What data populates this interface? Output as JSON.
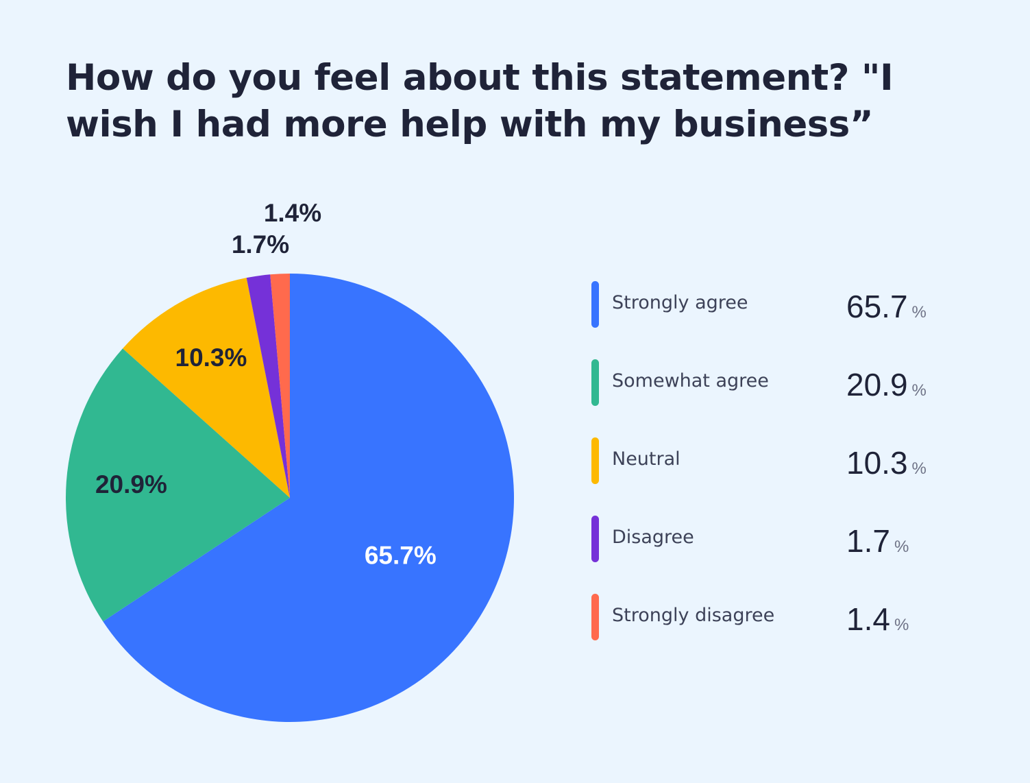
{
  "chart_data": {
    "type": "pie",
    "title": "How do you feel about this statement? \"I wish I had more help with my business”",
    "categories": [
      "Strongly agree",
      "Somewhat agree",
      "Neutral",
      "Disagree",
      "Strongly disagree"
    ],
    "values": [
      65.7,
      20.9,
      10.3,
      1.7,
      1.4
    ],
    "labels": [
      "65.7%",
      "20.9%",
      "10.3%",
      "1.7%",
      "1.4%"
    ],
    "legend_numbers": [
      "65.7",
      "20.9",
      "10.3",
      "1.7",
      "1.4"
    ],
    "unit": "%",
    "colors": [
      "#3874FF",
      "#31B891",
      "#FDB900",
      "#7531D8",
      "#FF6A4D"
    ],
    "label_colors": [
      "#FFFFFF",
      "#1F2338",
      "#1F2338",
      "#1F2338",
      "#1F2338"
    ],
    "legend_position": "right"
  }
}
